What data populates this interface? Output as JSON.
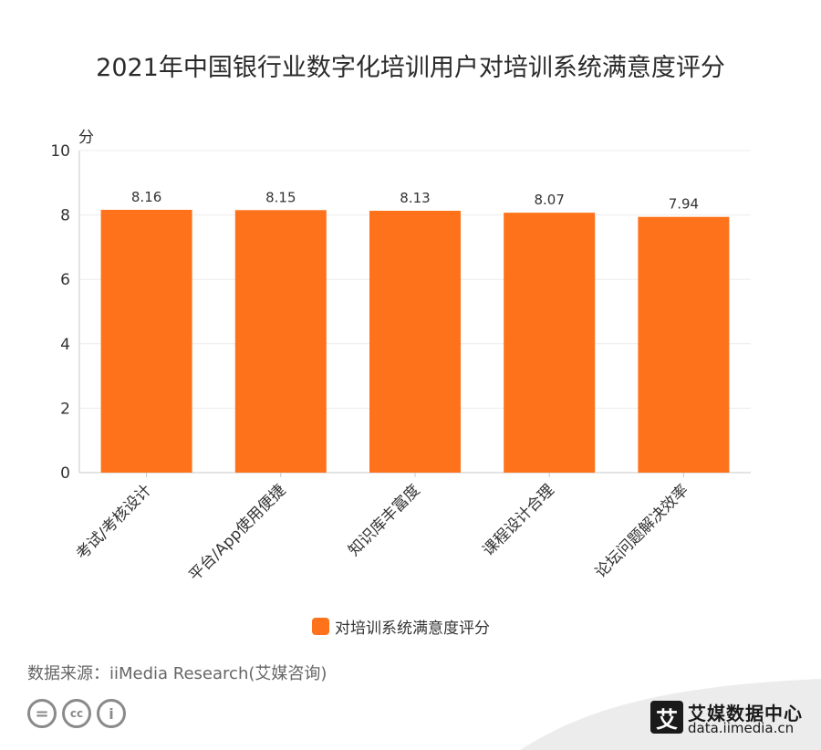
{
  "title": "2021年中国银行业数字化培训用户对培训系统满意度评分",
  "source": "数据来源：iiMedia Research(艾媒咨询)",
  "colors": {
    "bar": "#fd721a",
    "axis": "#c8c8c8",
    "grid": "#ececec",
    "text": "#333333"
  },
  "chart_data": {
    "type": "bar",
    "title": "2021年中国银行业数字化培训用户对培训系统满意度评分",
    "ylabel": "分",
    "xlabel": "",
    "ylim": [
      0,
      10
    ],
    "yticks": [
      0,
      2,
      4,
      6,
      8,
      10
    ],
    "categories": [
      "考试/考核设计",
      "平台/App使用便捷",
      "知识库丰富度",
      "课程设计合理",
      "论坛问题解决效率"
    ],
    "series": [
      {
        "name": "对培训系统满意度评分",
        "values": [
          8.16,
          8.15,
          8.13,
          8.07,
          7.94
        ]
      }
    ],
    "grid": true,
    "legend": "bottom-center"
  },
  "footer": {
    "cc_icons": [
      "equals-icon",
      "cc-icon",
      "person-icon"
    ],
    "cc_labels": [
      "=",
      "cc",
      "i"
    ],
    "brand_logo_char": "艾",
    "brand_name": "艾媒数据中心",
    "brand_url": "data.iimedia.cn"
  }
}
